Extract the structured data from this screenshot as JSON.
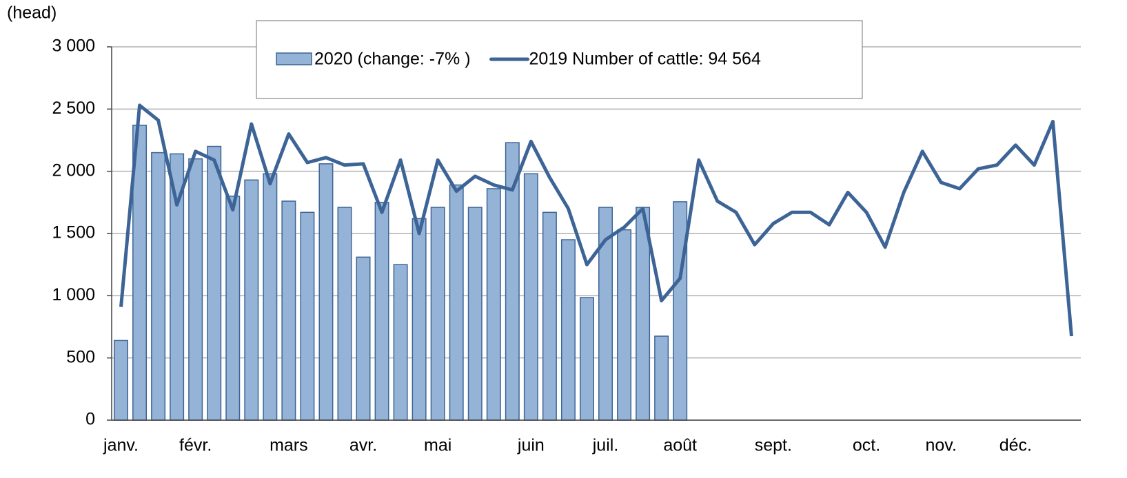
{
  "chart_data": {
    "type": "bar_line",
    "y_axis_label": "(head)",
    "categories": [
      "janv.",
      null,
      null,
      null,
      "févr.",
      null,
      null,
      null,
      null,
      "mars",
      null,
      null,
      null,
      "avr.",
      null,
      null,
      null,
      "mai",
      null,
      null,
      null,
      null,
      "juin",
      null,
      null,
      null,
      "juil.",
      null,
      null,
      null,
      "août",
      null,
      null,
      null,
      null,
      "sept.",
      null,
      null,
      null,
      null,
      "oct.",
      null,
      null,
      null,
      "nov.",
      null,
      null,
      null,
      "déc.",
      null,
      null,
      null
    ],
    "series": [
      {
        "name": "2020 (change: -7% )",
        "kind": "bar",
        "color": "#95b3d7",
        "edge_color": "#3d6496",
        "values": [
          640,
          2370,
          2150,
          2140,
          2100,
          2200,
          1800,
          1930,
          1980,
          1760,
          1670,
          2060,
          1710,
          1310,
          1750,
          1250,
          1620,
          1710,
          1890,
          1710,
          1860,
          2230,
          1980,
          1670,
          1450,
          985,
          1710,
          1530,
          1710,
          675,
          1755,
          null,
          null,
          null,
          null,
          null,
          null,
          null,
          null,
          null,
          null,
          null,
          null,
          null,
          null,
          null,
          null,
          null,
          null,
          null,
          null,
          null
        ]
      },
      {
        "name": "2019 Number of cattle: 94 564",
        "kind": "line",
        "color": "#3d6496",
        "values": [
          910,
          2530,
          2410,
          1730,
          2160,
          2090,
          1690,
          2380,
          1900,
          2300,
          2070,
          2110,
          2050,
          2060,
          1670,
          2090,
          1500,
          2090,
          1840,
          1960,
          1890,
          1850,
          2240,
          1950,
          1700,
          1250,
          1450,
          1550,
          1700,
          960,
          1140,
          2090,
          1760,
          1670,
          1410,
          1580,
          1670,
          1670,
          1570,
          1830,
          1670,
          1390,
          1830,
          2160,
          1910,
          1860,
          2020,
          2050,
          2210,
          2050,
          2400,
          675
        ]
      }
    ],
    "ylim": [
      0,
      3000
    ],
    "yticks": [
      0,
      500,
      {
        "value": 1000,
        "label": "1 000"
      },
      {
        "value": 1500,
        "label": "1 500"
      },
      {
        "value": 2000,
        "label": "2 000"
      },
      {
        "value": 2500,
        "label": "2 500"
      },
      {
        "value": 3000,
        "label": "3 000"
      }
    ],
    "grid": true
  }
}
